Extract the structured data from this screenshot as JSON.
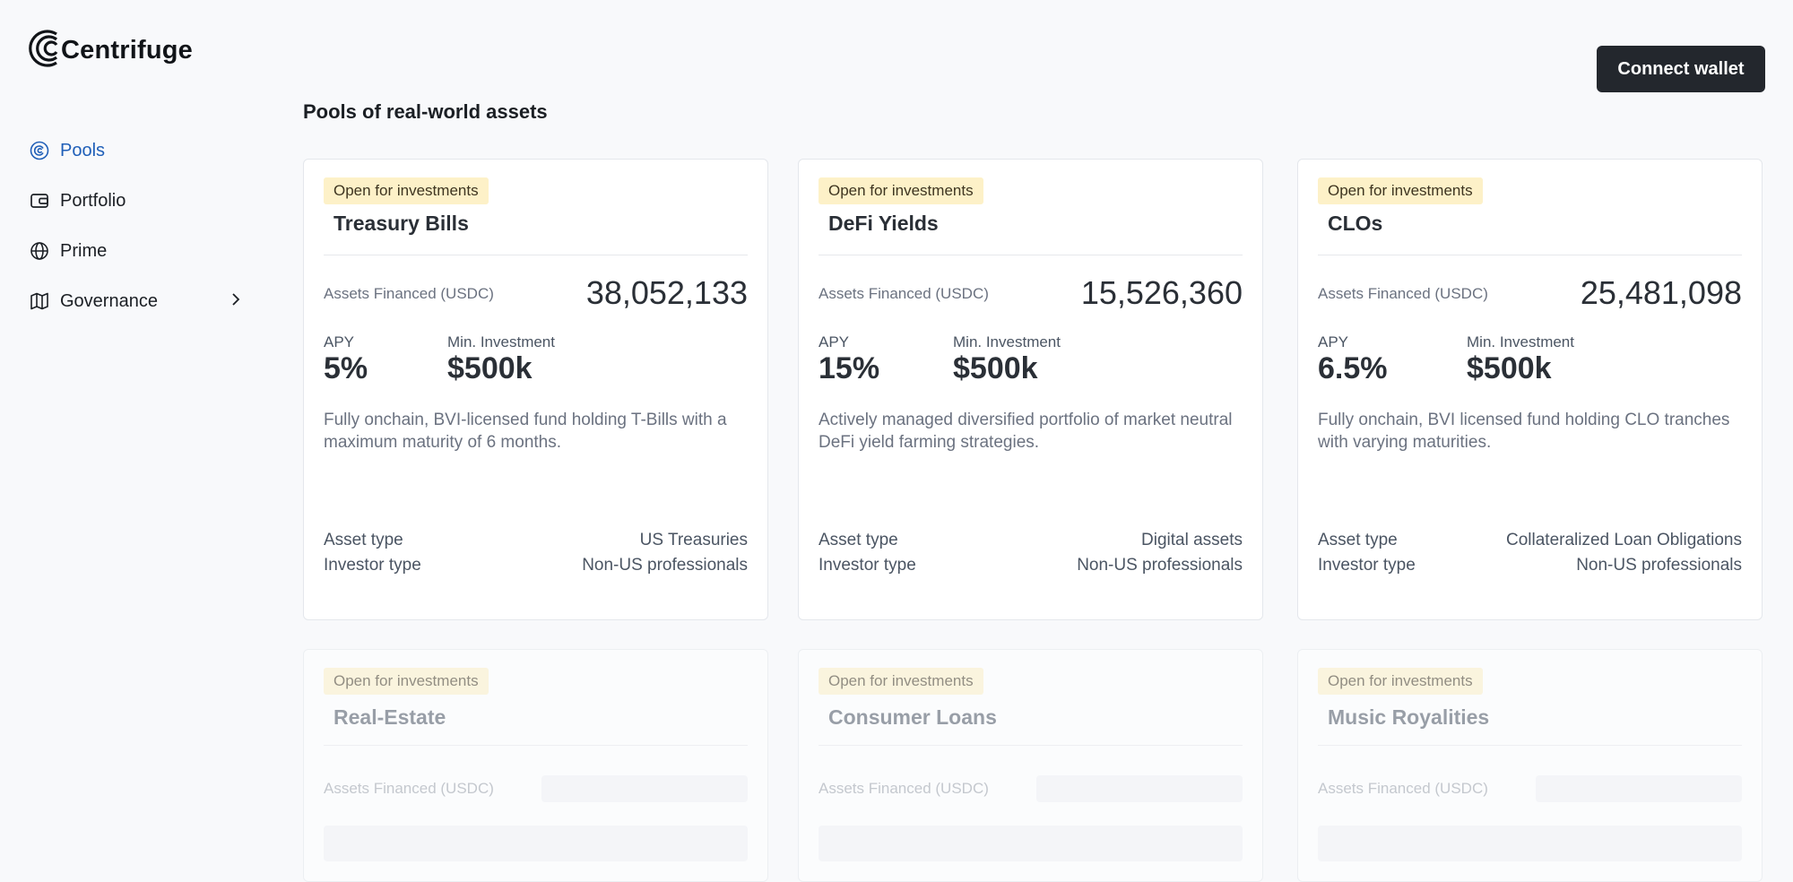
{
  "app": {
    "logo_text": "Centrifuge"
  },
  "nav": {
    "items": [
      {
        "label": "Pools",
        "icon": "pools-icon",
        "active": true
      },
      {
        "label": "Portfolio",
        "icon": "wallet-icon"
      },
      {
        "label": "Prime",
        "icon": "globe-icon"
      },
      {
        "label": "Governance",
        "icon": "map-icon",
        "has_submenu": true
      }
    ]
  },
  "header": {
    "connect_label": "Connect wallet"
  },
  "page": {
    "title": "Pools of real-world assets"
  },
  "labels": {
    "assets_financed": "Assets Financed (USDC)",
    "apy": "APY",
    "min_investment": "Min. Investment",
    "asset_type": "Asset type",
    "investor_type": "Investor type"
  },
  "pools": [
    {
      "status": "Open for investments",
      "name": "Treasury Bills",
      "assets_financed": "38,052,133",
      "apy": "5%",
      "min_investment": "$500k",
      "description": "Fully onchain, BVI-licensed fund holding T-Bills with a maximum maturity of 6 months.",
      "asset_type": "US Treasuries",
      "investor_type": "Non-US professionals"
    },
    {
      "status": "Open for investments",
      "name": "DeFi Yields",
      "assets_financed": "15,526,360",
      "apy": "15%",
      "min_investment": "$500k",
      "description": "Actively managed diversified portfolio of market neutral DeFi yield farming strategies.",
      "asset_type": "Digital assets",
      "investor_type": "Non-US professionals"
    },
    {
      "status": "Open for investments",
      "name": "CLOs",
      "assets_financed": "25,481,098",
      "apy": "6.5%",
      "min_investment": "$500k",
      "description": "Fully onchain, BVI licensed fund holding CLO tranches with varying maturities.",
      "asset_type": "Collateralized Loan Obligations",
      "investor_type": "Non-US professionals"
    },
    {
      "status": "Open for investments",
      "name": "Real-Estate"
    },
    {
      "status": "Open for investments",
      "name": "Consumer Loans"
    },
    {
      "status": "Open for investments",
      "name": "Music Royalities"
    }
  ],
  "colors": {
    "accent": "#1f5fb8",
    "button_bg": "#23272d",
    "badge_bg": "#fdf1c8",
    "page_bg": "#f8f9fb"
  }
}
